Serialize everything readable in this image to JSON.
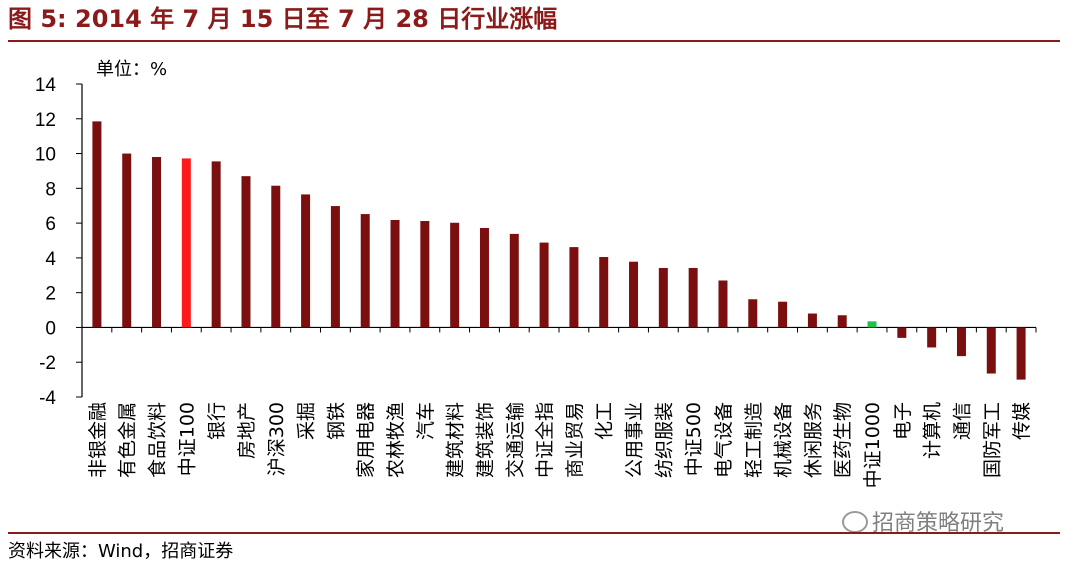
{
  "figure": {
    "title": "图 5:  2014 年 7 月 15 日至 7 月 28 日行业涨幅",
    "source": "资料来源：Wind，招商证券",
    "watermark": "招商策略研究"
  },
  "colors": {
    "accent": "#8b1a1a",
    "bar": "#7b0f0f",
    "highlight_red": "#ff1a1a",
    "highlight_green": "#22c04a"
  },
  "chart_data": {
    "type": "bar",
    "unit_label": "单位：%",
    "ylim": [
      -4,
      14
    ],
    "yticks": [
      -4,
      -2,
      0,
      2,
      4,
      6,
      8,
      10,
      12,
      14
    ],
    "grid": false,
    "categories": [
      "非银金融",
      "有色金属",
      "食品饮料",
      "中证100",
      "银行",
      "房地产",
      "沪深300",
      "采掘",
      "钢铁",
      "家用电器",
      "农林牧渔",
      "汽车",
      "建筑材料",
      "建筑装饰",
      "交通运输",
      "中证全指",
      "商业贸易",
      "化工",
      "公用事业",
      "纺织服装",
      "中证500",
      "电气设备",
      "轻工制造",
      "机械设备",
      "休闲服务",
      "医药生物",
      "中证1000",
      "电子",
      "计算机",
      "通信",
      "国防军工",
      "传媒"
    ],
    "values": [
      11.85,
      10.0,
      9.8,
      9.72,
      9.55,
      8.7,
      8.15,
      7.65,
      6.98,
      6.52,
      6.18,
      6.12,
      6.02,
      5.72,
      5.38,
      4.88,
      4.62,
      4.05,
      3.78,
      3.42,
      3.42,
      2.7,
      1.62,
      1.48,
      0.8,
      0.7,
      0.35,
      -0.6,
      -1.15,
      -1.65,
      -2.65,
      -3.0
    ],
    "highlight": {
      "中证100": "#ff1a1a",
      "中证1000": "#22c04a"
    }
  }
}
